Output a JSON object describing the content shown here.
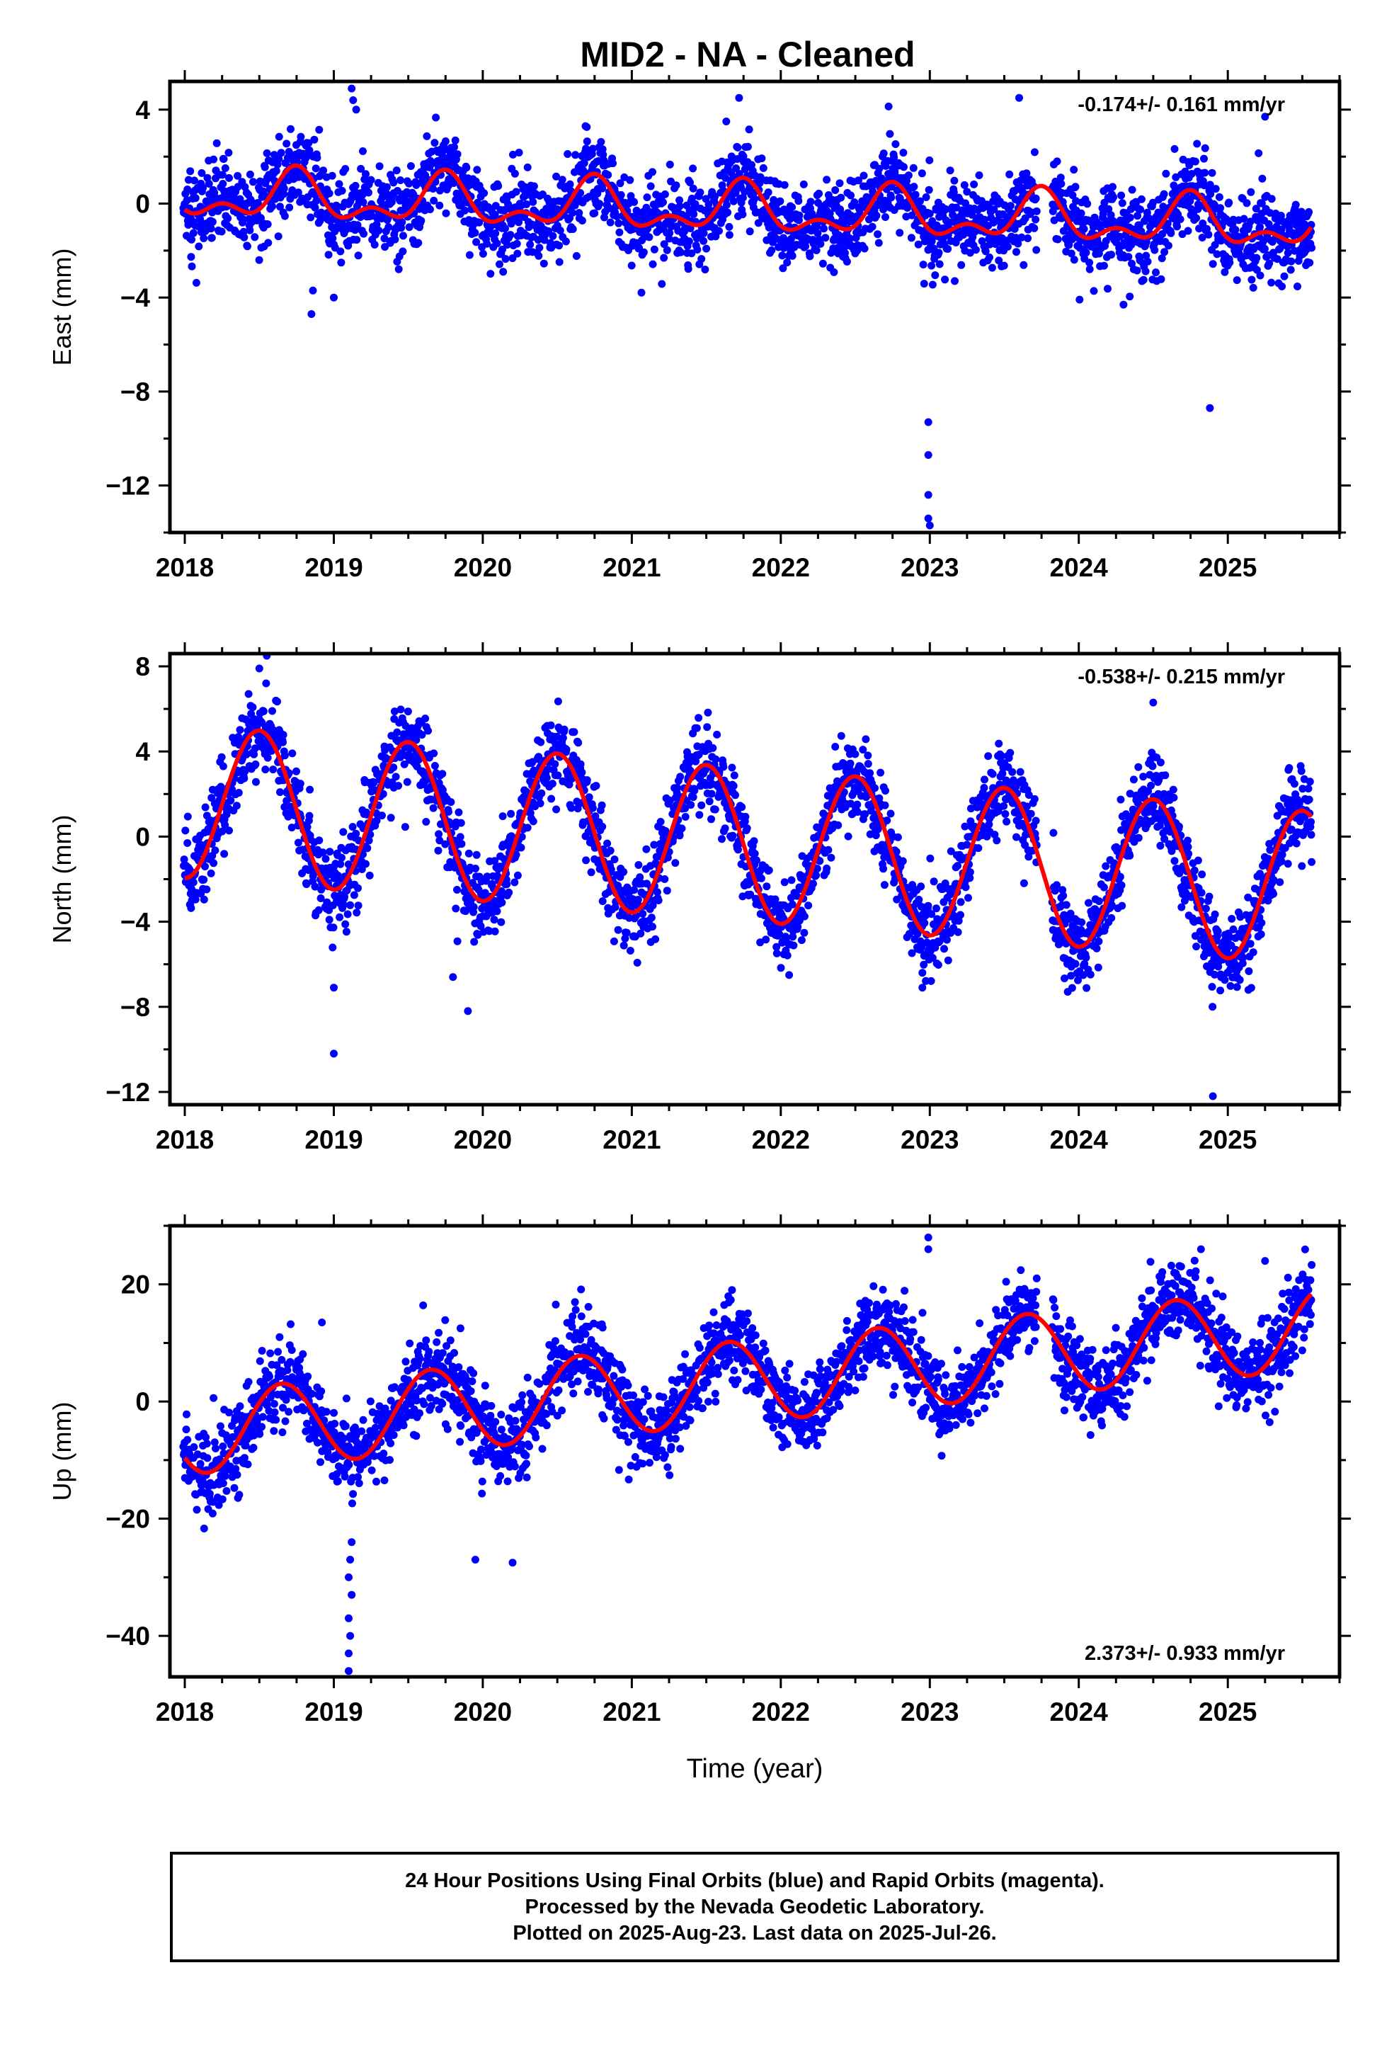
{
  "title": "MID2  - NA - Cleaned",
  "xlabel": "Time (year)",
  "caption": [
    "24 Hour Positions Using Final Orbits (blue) and Rapid Orbits (magenta).",
    "Processed by the Nevada Geodetic Laboratory.",
    "Plotted on 2025-Aug-23. Last data on 2025-Jul-26."
  ],
  "colors": {
    "points": "#0000ff",
    "model": "#ff0000"
  },
  "chart_data": [
    {
      "type": "scatter",
      "name": "east",
      "ylabel": "East (mm)",
      "rate": "-0.174+/- 0.161 mm/yr",
      "rate_position": "top-right",
      "xlim": [
        2017.9,
        2025.75
      ],
      "ylim": [
        -14,
        5.2
      ],
      "x_ticks": [
        2018,
        2019,
        2020,
        2021,
        2022,
        2023,
        2024,
        2025
      ],
      "y_ticks": [
        4,
        0,
        -4,
        -8,
        -12
      ],
      "model": {
        "intercept": 0.35,
        "rate": -0.174,
        "annual_cos": -0.05,
        "annual_sin": -0.85,
        "semiannual_cos": -0.55,
        "semiannual_sin": 0.0,
        "t0": 2018.0
      },
      "scatter_sigma": 0.9,
      "outliers": [
        {
          "x": 2019.12,
          "y": 4.9
        },
        {
          "x": 2019.13,
          "y": 4.4
        },
        {
          "x": 2019.15,
          "y": 4.0
        },
        {
          "x": 2018.85,
          "y": -4.7
        },
        {
          "x": 2018.86,
          "y": -3.7
        },
        {
          "x": 2019.0,
          "y": -4.0
        },
        {
          "x": 2022.99,
          "y": -9.3
        },
        {
          "x": 2022.99,
          "y": -10.7
        },
        {
          "x": 2022.99,
          "y": -12.4
        },
        {
          "x": 2022.99,
          "y": -13.4
        },
        {
          "x": 2023.0,
          "y": -13.7
        },
        {
          "x": 2024.3,
          "y": -4.3
        },
        {
          "x": 2024.88,
          "y": -8.7
        },
        {
          "x": 2025.25,
          "y": 3.7
        },
        {
          "x": 2023.6,
          "y": 4.5
        },
        {
          "x": 2021.72,
          "y": 4.5
        }
      ]
    },
    {
      "type": "scatter",
      "name": "north",
      "ylabel": "North (mm)",
      "rate": "-0.538+/- 0.215 mm/yr",
      "rate_position": "top-right",
      "xlim": [
        2017.9,
        2025.75
      ],
      "ylim": [
        -12.6,
        8.6
      ],
      "x_ticks": [
        2018,
        2019,
        2020,
        2021,
        2022,
        2023,
        2024,
        2025
      ],
      "y_ticks": [
        8,
        4,
        0,
        -4,
        -8,
        -12
      ],
      "model": {
        "intercept": 1.65,
        "rate": -0.538,
        "annual_cos": -3.6,
        "annual_sin": 0.0,
        "semiannual_cos": 0.0,
        "semiannual_sin": 0.0,
        "t0": 2018.0
      },
      "scatter_sigma": 1.0,
      "outliers": [
        {
          "x": 2018.55,
          "y": 8.5
        },
        {
          "x": 2018.5,
          "y": 7.9
        },
        {
          "x": 2019.0,
          "y": -10.2
        },
        {
          "x": 2019.0,
          "y": -7.1
        },
        {
          "x": 2019.9,
          "y": -8.2
        },
        {
          "x": 2019.8,
          "y": -6.6
        },
        {
          "x": 2022.95,
          "y": -7.1
        },
        {
          "x": 2022.95,
          "y": -6.4
        },
        {
          "x": 2024.9,
          "y": -12.2
        },
        {
          "x": 2024.5,
          "y": 6.3
        }
      ]
    },
    {
      "type": "scatter",
      "name": "up",
      "ylabel": "Up (mm)",
      "rate": "2.373+/- 0.933 mm/yr",
      "rate_position": "bottom-right",
      "xlim": [
        2017.9,
        2025.75
      ],
      "ylim": [
        -47,
        30
      ],
      "x_ticks": [
        2018,
        2019,
        2020,
        2021,
        2022,
        2023,
        2024,
        2025
      ],
      "y_ticks": [
        20,
        0,
        -20,
        -40
      ],
      "model": {
        "intercept": -5.5,
        "rate": 2.373,
        "annual_cos": -4.1,
        "annual_sin": -5.7,
        "semiannual_cos": 0.0,
        "semiannual_sin": 0.0,
        "t0": 2018.0
      },
      "scatter_sigma": 3.6,
      "outliers": [
        {
          "x": 2019.1,
          "y": -46
        },
        {
          "x": 2019.1,
          "y": -43
        },
        {
          "x": 2019.11,
          "y": -40
        },
        {
          "x": 2019.1,
          "y": -37
        },
        {
          "x": 2019.12,
          "y": -33
        },
        {
          "x": 2019.1,
          "y": -30
        },
        {
          "x": 2019.11,
          "y": -27
        },
        {
          "x": 2019.12,
          "y": -24
        },
        {
          "x": 2022.99,
          "y": 28
        },
        {
          "x": 2022.99,
          "y": 26
        },
        {
          "x": 2018.92,
          "y": 13.5
        },
        {
          "x": 2019.85,
          "y": 12.5
        },
        {
          "x": 2024.82,
          "y": 26
        },
        {
          "x": 2025.25,
          "y": 24
        },
        {
          "x": 2020.2,
          "y": -27.5
        },
        {
          "x": 2019.95,
          "y": -27
        }
      ]
    }
  ]
}
